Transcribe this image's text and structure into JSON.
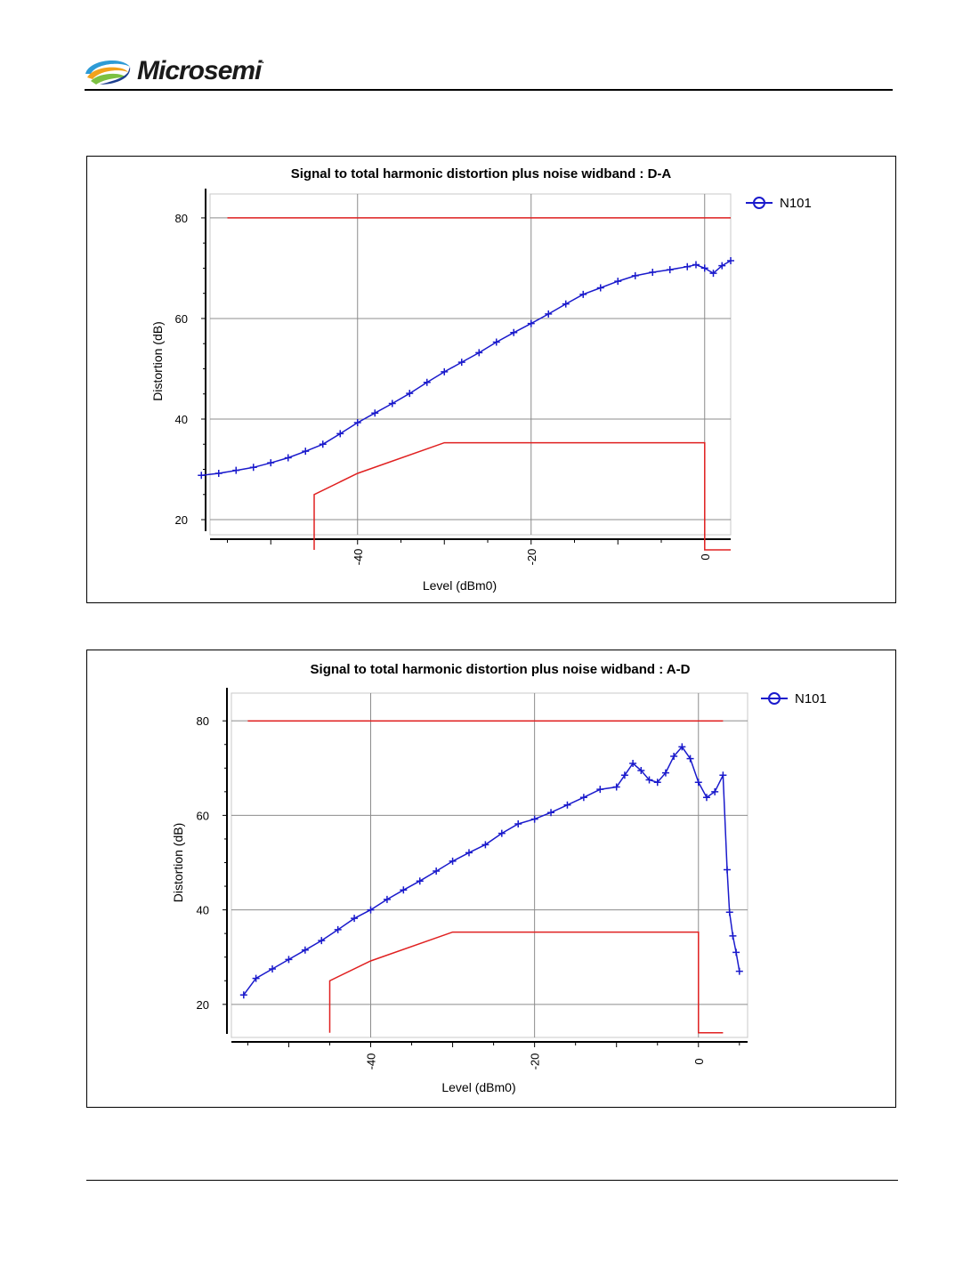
{
  "header": {
    "brand": "Microsemi",
    "brand_mark": "."
  },
  "chart_data": [
    {
      "type": "line",
      "title": "Signal to total harmonic distortion plus noise widband : D-A",
      "xlabel": "Level (dBm0)",
      "ylabel": "Distortion (dB)",
      "xlim": [
        -57,
        3
      ],
      "ylim": [
        17,
        86
      ],
      "x_ticks": [
        -40,
        -20,
        0
      ],
      "y_ticks": [
        20,
        40,
        60,
        80
      ],
      "grid": true,
      "legend": "top-right",
      "colors": {
        "series": "#1a1acc",
        "mask": "#e02020"
      },
      "series": [
        {
          "name": "N101",
          "marker": "plus",
          "x": [
            -58,
            -56,
            -54,
            -52,
            -50,
            -48,
            -46,
            -44,
            -42,
            -40,
            -38,
            -36,
            -34,
            -32,
            -30,
            -28,
            -26,
            -24,
            -22,
            -20,
            -18,
            -16,
            -14,
            -12,
            -10,
            -8,
            -6,
            -4,
            -2,
            -1,
            0,
            1,
            2,
            3
          ],
          "y": [
            28.8,
            29.2,
            29.8,
            30.4,
            31.3,
            32.3,
            33.6,
            35.0,
            37.1,
            39.3,
            41.2,
            43.1,
            45.1,
            47.3,
            49.4,
            51.3,
            53.2,
            55.3,
            57.2,
            59.0,
            60.9,
            62.9,
            64.8,
            66.1,
            67.4,
            68.5,
            69.2,
            69.7,
            70.3,
            70.7,
            70.0,
            69.0,
            70.5,
            71.5
          ]
        }
      ],
      "mask_upper": {
        "x": [
          -55,
          3
        ],
        "y": [
          80,
          80
        ]
      },
      "mask_lower": {
        "x": [
          -45,
          -45,
          -40,
          -30,
          0,
          0,
          3
        ],
        "y": [
          14,
          25,
          29.2,
          35.3,
          35.3,
          14,
          14
        ]
      }
    },
    {
      "type": "line",
      "title": "Signal to total harmonic distortion plus noise widband : A-D",
      "xlabel": "Level (dBm0)",
      "ylabel": "Distortion (dB)",
      "xlim": [
        -57,
        6
      ],
      "ylim": [
        13,
        87
      ],
      "x_ticks": [
        -40,
        -20,
        0
      ],
      "y_ticks": [
        20,
        40,
        60,
        80
      ],
      "grid": true,
      "legend": "top-right",
      "colors": {
        "series": "#1a1acc",
        "mask": "#e02020"
      },
      "series": [
        {
          "name": "N101",
          "marker": "plus",
          "x": [
            -55.5,
            -54,
            -52,
            -50,
            -48,
            -46,
            -44,
            -42,
            -40,
            -38,
            -36,
            -34,
            -32,
            -30,
            -28,
            -26,
            -24,
            -22,
            -20,
            -18,
            -16,
            -14,
            -12,
            -10,
            -9,
            -8,
            -7,
            -6,
            -5,
            -4,
            -3,
            -2,
            -1,
            0,
            1,
            2,
            3,
            3.5,
            3.8,
            4.2,
            4.6,
            5.0
          ],
          "y": [
            22,
            25.5,
            27.5,
            29.5,
            31.5,
            33.5,
            35.8,
            38.2,
            40.0,
            42.2,
            44.2,
            46.1,
            48.2,
            50.3,
            52.1,
            53.8,
            56.2,
            58.2,
            59.2,
            60.6,
            62.2,
            63.8,
            65.5,
            66.0,
            68.5,
            71.0,
            69.5,
            67.5,
            67.0,
            69.0,
            72.5,
            74.5,
            72.0,
            67.0,
            63.8,
            65.0,
            68.5,
            48.5,
            39.5,
            34.5,
            31.0,
            27.0
          ]
        }
      ],
      "mask_upper": {
        "x": [
          -55,
          3
        ],
        "y": [
          80,
          80
        ]
      },
      "mask_lower": {
        "x": [
          -45,
          -45,
          -40,
          -30,
          0,
          0,
          3
        ],
        "y": [
          14,
          25,
          29.2,
          35.3,
          35.3,
          14,
          14
        ]
      }
    }
  ]
}
